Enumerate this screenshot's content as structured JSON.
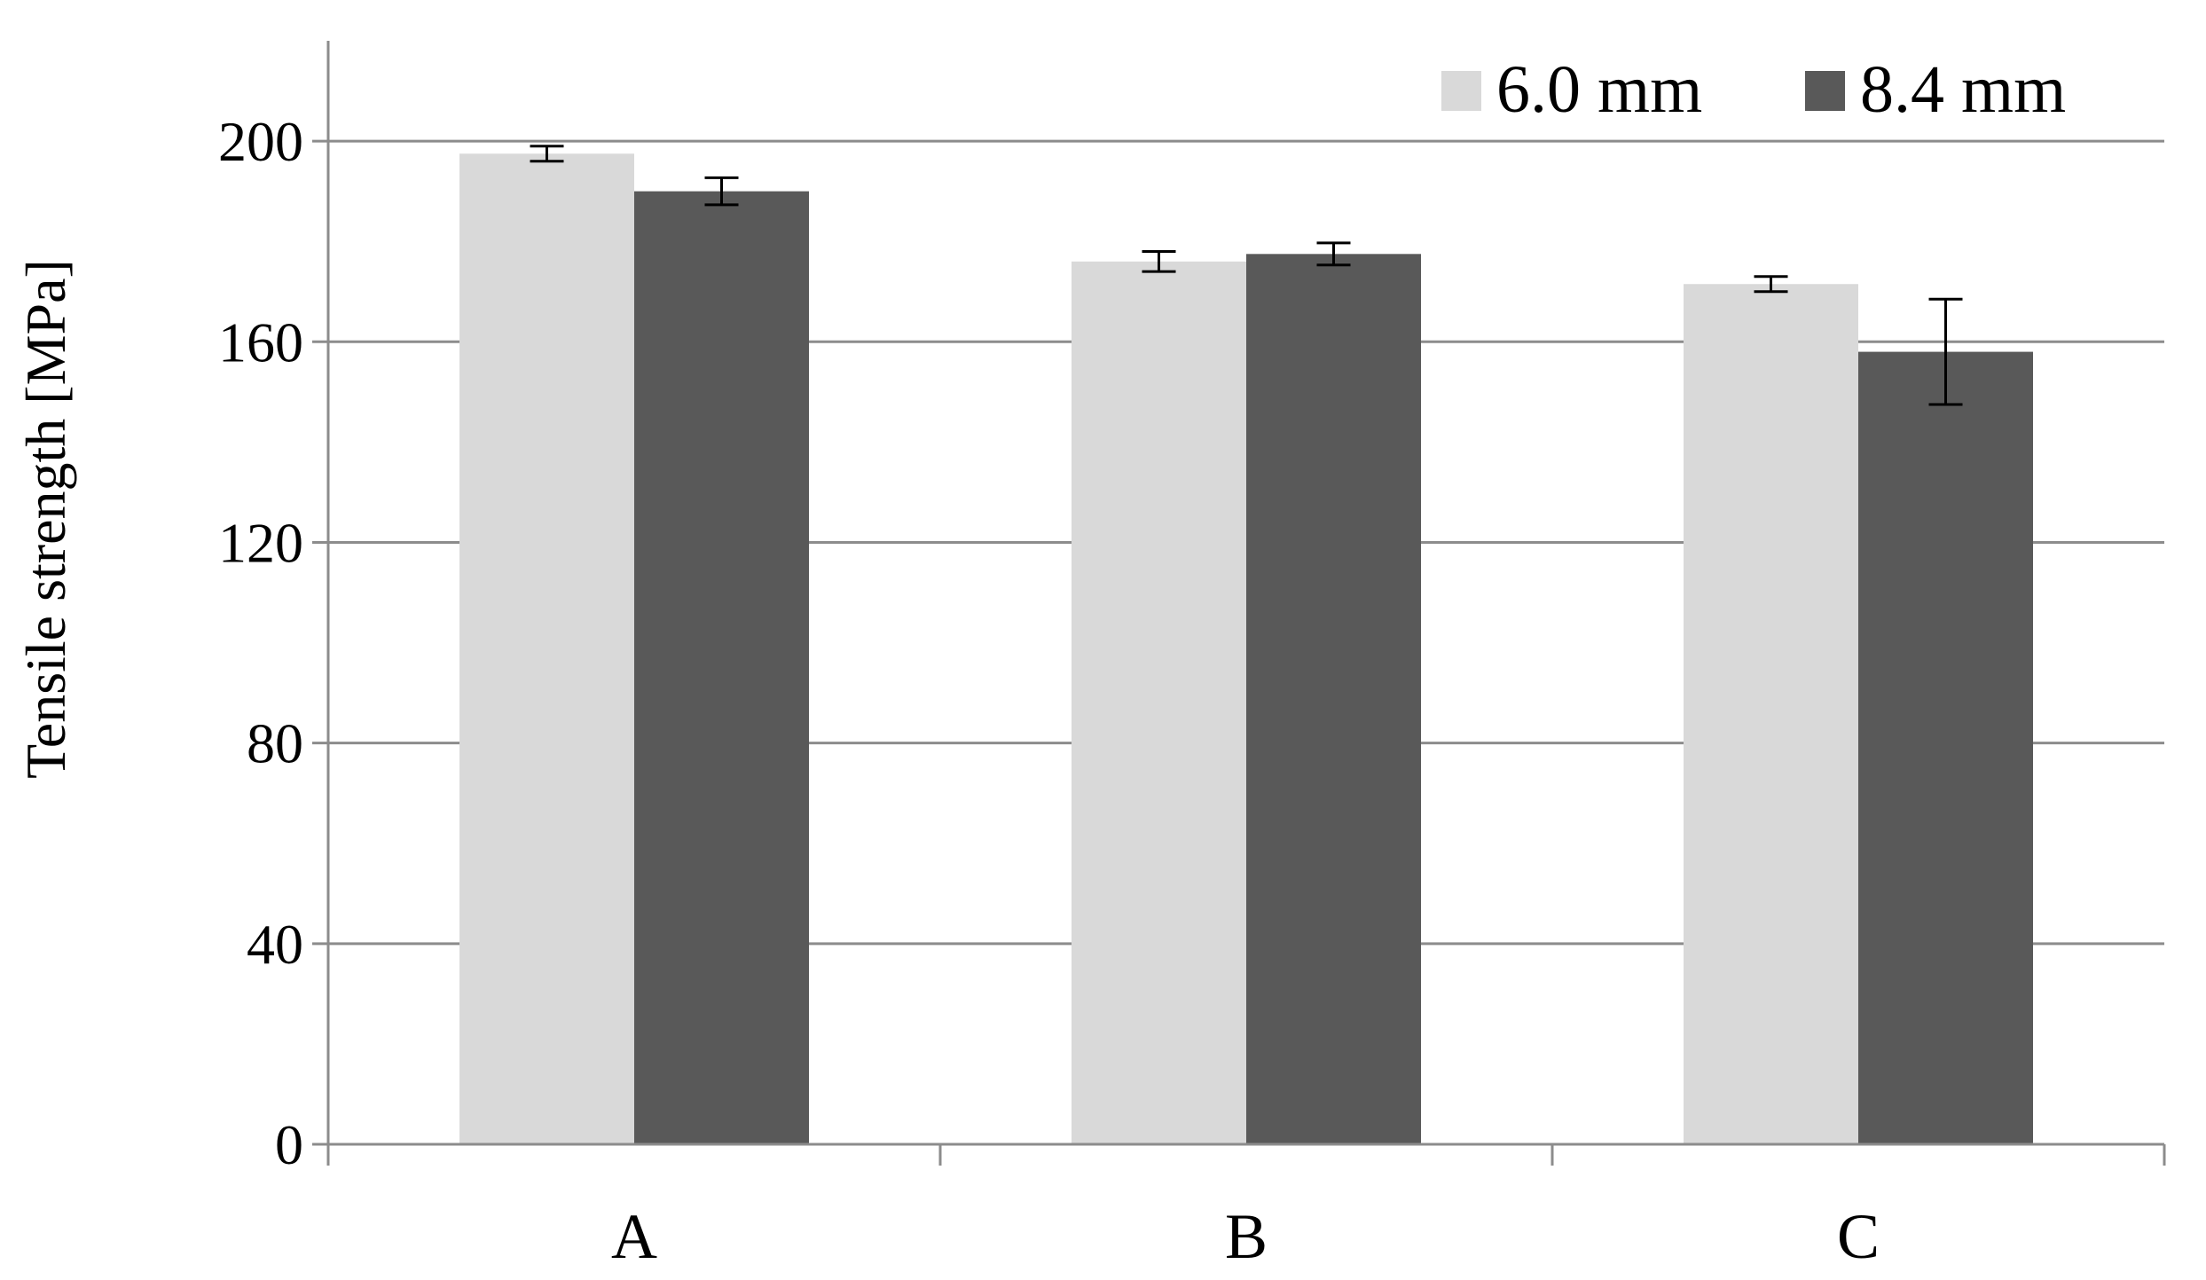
{
  "chart_data": {
    "type": "bar",
    "title": "",
    "xlabel": "",
    "ylabel": "Tensile strength  [MPa]",
    "categories": [
      "A",
      "B",
      "C"
    ],
    "ylim": [
      0,
      220
    ],
    "yticks": [
      0,
      40,
      80,
      120,
      160,
      200
    ],
    "grid": true,
    "legend_position": "top-right",
    "series": [
      {
        "name": "6.0 mm",
        "color": "#d9d9d9",
        "values": [
          197.5,
          176,
          171.5
        ],
        "errors": [
          1.5,
          2,
          1.5
        ]
      },
      {
        "name": "8.4 mm",
        "color": "#595959",
        "values": [
          190,
          177.5,
          158
        ],
        "errors": [
          2.7,
          2.2,
          10.5
        ]
      }
    ]
  }
}
